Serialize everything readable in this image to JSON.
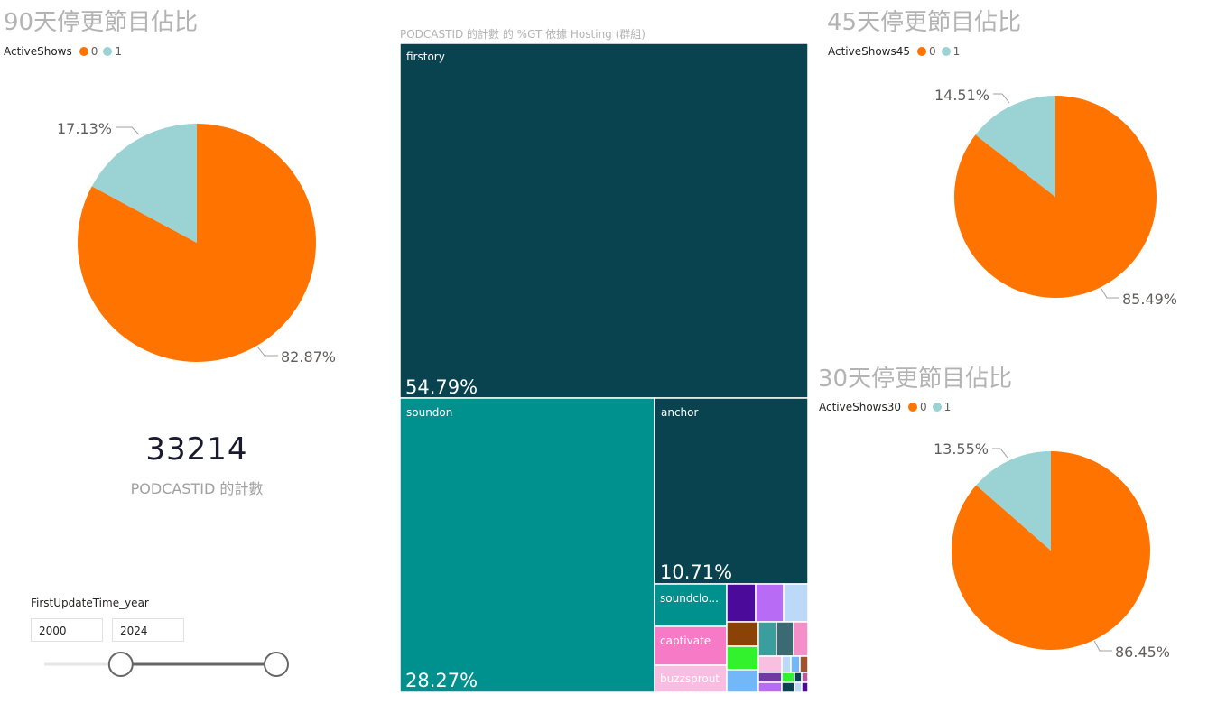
{
  "colors": {
    "orange": "#ff7300",
    "teal_light": "#9bd2d3",
    "label_grey": "#605e5c"
  },
  "pie90": {
    "title": "90天停更節目佔比",
    "legend_title": "ActiveShows",
    "legend_items": [
      "0",
      "1"
    ],
    "labels": {
      "v0": "82.87%",
      "v1": "17.13%"
    }
  },
  "pie45": {
    "title": "45天停更節目佔比",
    "legend_title": "ActiveShows45",
    "legend_items": [
      "0",
      "1"
    ],
    "labels": {
      "v0": "85.49%",
      "v1": "14.51%"
    }
  },
  "pie30": {
    "title": "30天停更節目佔比",
    "legend_title": "ActiveShows30",
    "legend_items": [
      "0",
      "1"
    ],
    "labels": {
      "v0": "86.45%",
      "v1": "13.55%"
    }
  },
  "card": {
    "value": "33214",
    "label": "PODCASTID 的計數"
  },
  "slicer": {
    "title": "FirstUpdateTime_year",
    "from": "2000",
    "to": "2024",
    "range_fraction": [
      0.33,
      1.0
    ]
  },
  "treemap": {
    "title": "PODCASTID 的計數 的 %GT 依據 Hosting (群組)",
    "firstory": {
      "name": "firstory",
      "pct": "54.79%"
    },
    "soundon": {
      "name": "soundon",
      "pct": "28.27%"
    },
    "anchor": {
      "name": "anchor",
      "pct": "10.71%"
    },
    "soundcloud": {
      "name": "soundclo..."
    },
    "captivate": {
      "name": "captivate"
    },
    "buzzsprout": {
      "name": "buzzsprout"
    }
  },
  "chart_data": [
    {
      "type": "pie",
      "title": "90天停更節目佔比",
      "legend_title": "ActiveShows",
      "legend_position": "top-left",
      "categories": [
        "0",
        "1"
      ],
      "values": [
        82.87,
        17.13
      ],
      "colors": [
        "#ff7300",
        "#9bd2d3"
      ]
    },
    {
      "type": "pie",
      "title": "45天停更節目佔比",
      "legend_title": "ActiveShows45",
      "legend_position": "top-left",
      "categories": [
        "0",
        "1"
      ],
      "values": [
        85.49,
        14.51
      ],
      "colors": [
        "#ff7300",
        "#9bd2d3"
      ]
    },
    {
      "type": "pie",
      "title": "30天停更節目佔比",
      "legend_title": "ActiveShows30",
      "legend_position": "top-left",
      "categories": [
        "0",
        "1"
      ],
      "values": [
        86.45,
        13.55
      ],
      "colors": [
        "#ff7300",
        "#9bd2d3"
      ]
    },
    {
      "type": "treemap",
      "title": "PODCASTID 的計數 的 %GT 依據 Hosting (群組)",
      "categories": [
        "firstory",
        "soundon",
        "anchor",
        "soundclo...",
        "captivate",
        "buzzsprout"
      ],
      "values": [
        54.79,
        28.27,
        10.71,
        null,
        null,
        null
      ],
      "colors": [
        "#09434f",
        "#00908d",
        "#09434f",
        "#00908d",
        "#f67ac5",
        "#fabde2"
      ]
    }
  ]
}
